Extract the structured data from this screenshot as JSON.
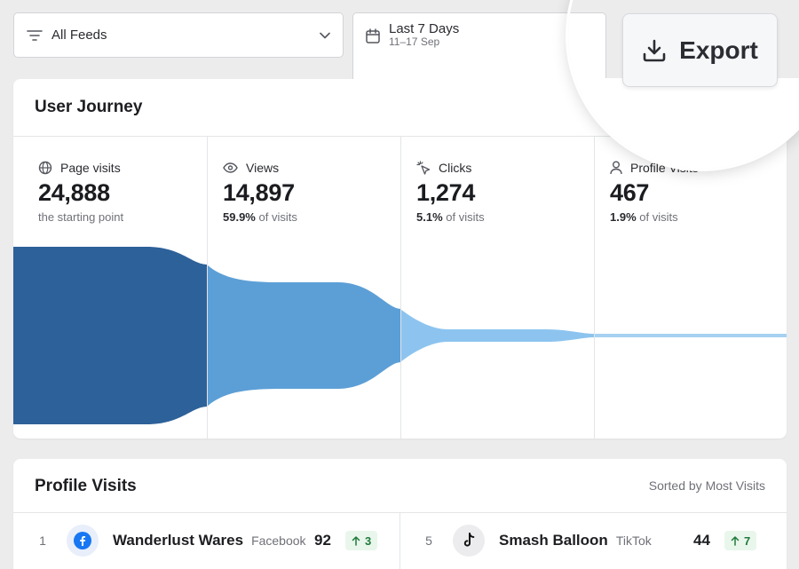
{
  "filters": {
    "feeds_label": "All Feeds",
    "date_label": "Last 7 Days",
    "date_range": "11–17 Sep"
  },
  "export_label": "Export",
  "journey": {
    "title": "User Journey",
    "stages": [
      {
        "icon": "globe-icon",
        "label": "Page visits",
        "value": "24,888",
        "pct": "",
        "sub": "the starting point"
      },
      {
        "icon": "eye-icon",
        "label": "Views",
        "value": "14,897",
        "pct": "59.9%",
        "sub": " of visits"
      },
      {
        "icon": "cursor-click-icon",
        "label": "Clicks",
        "value": "1,274",
        "pct": "5.1%",
        "sub": " of visits"
      },
      {
        "icon": "user-icon",
        "label": "Profile Visits",
        "value": "467",
        "pct": "1.9%",
        "sub": " of visits"
      }
    ],
    "colors": [
      "#2d6199",
      "#5c9fd6",
      "#8dc4ef",
      "#a6d1f2"
    ]
  },
  "profile": {
    "title": "Profile Visits",
    "sort_label": "Sorted by Most Visits",
    "rows": [
      {
        "rank": "1",
        "name": "Wanderlust Wares",
        "platform": "Facebook",
        "logo": "facebook-icon",
        "value": "92",
        "delta": "3"
      },
      {
        "rank": "5",
        "name": "Smash Balloon",
        "platform": "TikTok",
        "logo": "tiktok-icon",
        "value": "44",
        "delta": "7"
      }
    ]
  }
}
